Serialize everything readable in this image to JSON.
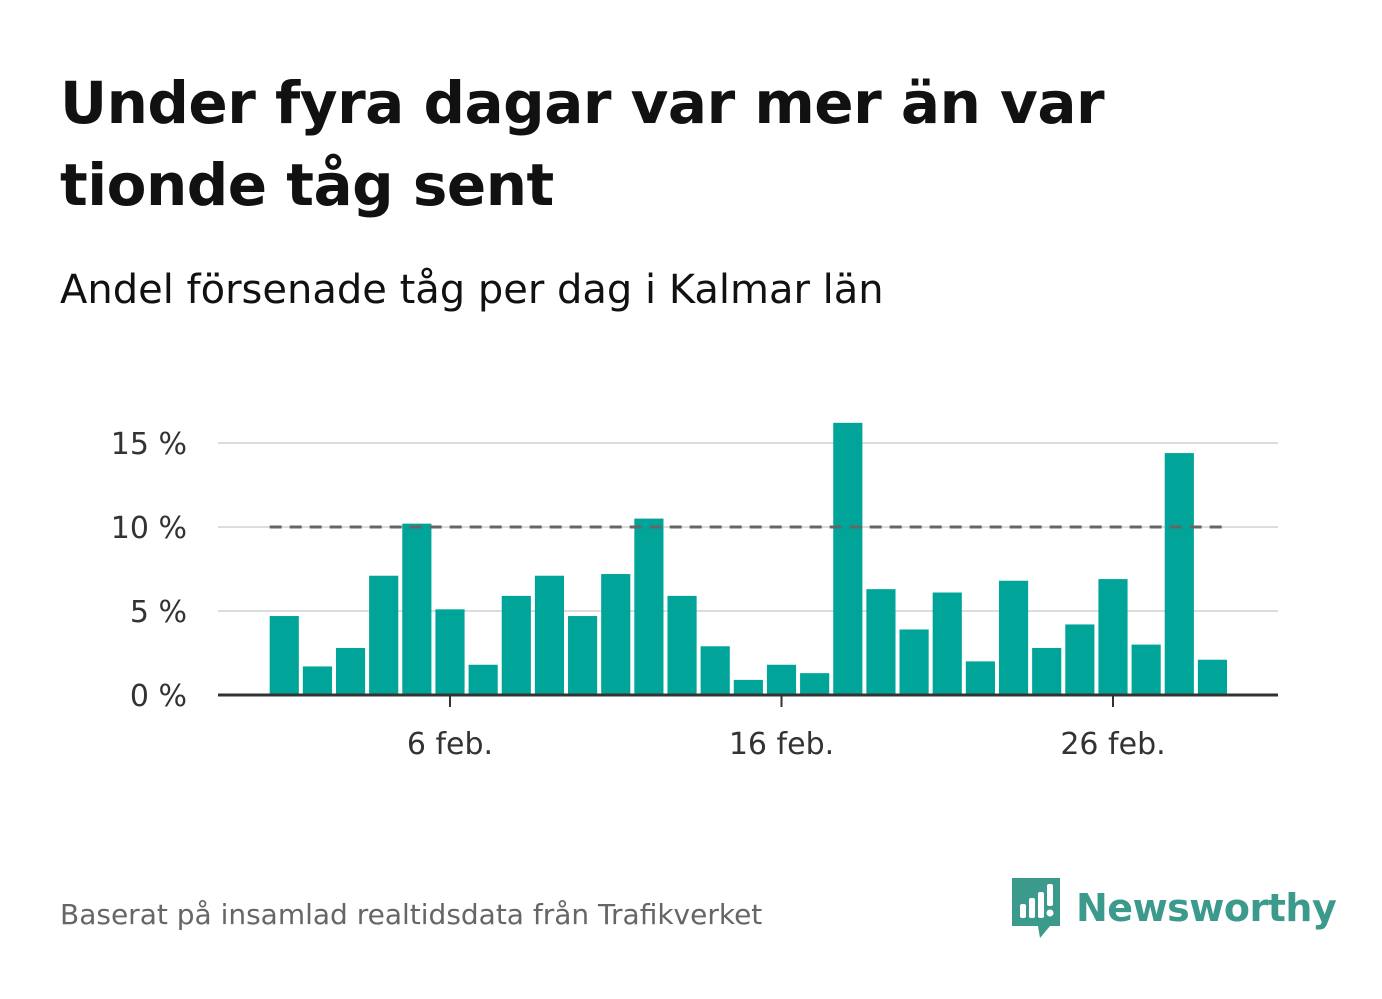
{
  "title": "Under fyra dagar var mer än var tionde tåg sent",
  "subtitle": "Andel försenade tåg per dag i Kalmar län",
  "footer": "Baserat på insamlad realtidsdata från Trafikverket",
  "brand": {
    "name": "Newsworthy",
    "icon": "newsworthy-logo-icon",
    "color": "#3b9a8c"
  },
  "colors": {
    "bar": "#00a499",
    "reference_line": "#666666",
    "grid": "#dddddd",
    "axis": "#333333"
  },
  "chart_data": {
    "type": "bar",
    "title": "Under fyra dagar var mer än var tionde tåg sent",
    "subtitle": "Andel försenade tåg per dag i Kalmar län",
    "xlabel": "",
    "ylabel": "",
    "ylim": [
      0,
      16
    ],
    "y_ticks": [
      {
        "value": 0,
        "label": "0 %"
      },
      {
        "value": 5,
        "label": "5 %"
      },
      {
        "value": 10,
        "label": "10 %"
      },
      {
        "value": 15,
        "label": "15 %"
      }
    ],
    "x_ticks": [
      {
        "day": 6,
        "label": "6 feb."
      },
      {
        "day": 16,
        "label": "16 feb."
      },
      {
        "day": 26,
        "label": "26 feb."
      }
    ],
    "reference_line": 10,
    "grid": true,
    "legend": "none",
    "categories": [
      "1 feb.",
      "2 feb.",
      "3 feb.",
      "4 feb.",
      "5 feb.",
      "6 feb.",
      "7 feb.",
      "8 feb.",
      "9 feb.",
      "10 feb.",
      "11 feb.",
      "12 feb.",
      "13 feb.",
      "14 feb.",
      "15 feb.",
      "16 feb.",
      "17 feb.",
      "18 feb.",
      "19 feb.",
      "20 feb.",
      "21 feb.",
      "22 feb.",
      "23 feb.",
      "24 feb.",
      "25 feb.",
      "26 feb.",
      "27 feb.",
      "28 feb.",
      "29 feb."
    ],
    "values": [
      4.7,
      1.7,
      2.8,
      7.1,
      10.2,
      5.1,
      1.8,
      5.9,
      7.1,
      4.7,
      7.2,
      10.5,
      5.9,
      2.9,
      0.9,
      1.8,
      1.3,
      16.2,
      6.3,
      3.9,
      6.1,
      2.0,
      6.8,
      2.8,
      4.2,
      6.9,
      3.0,
      14.4,
      2.1
    ]
  }
}
